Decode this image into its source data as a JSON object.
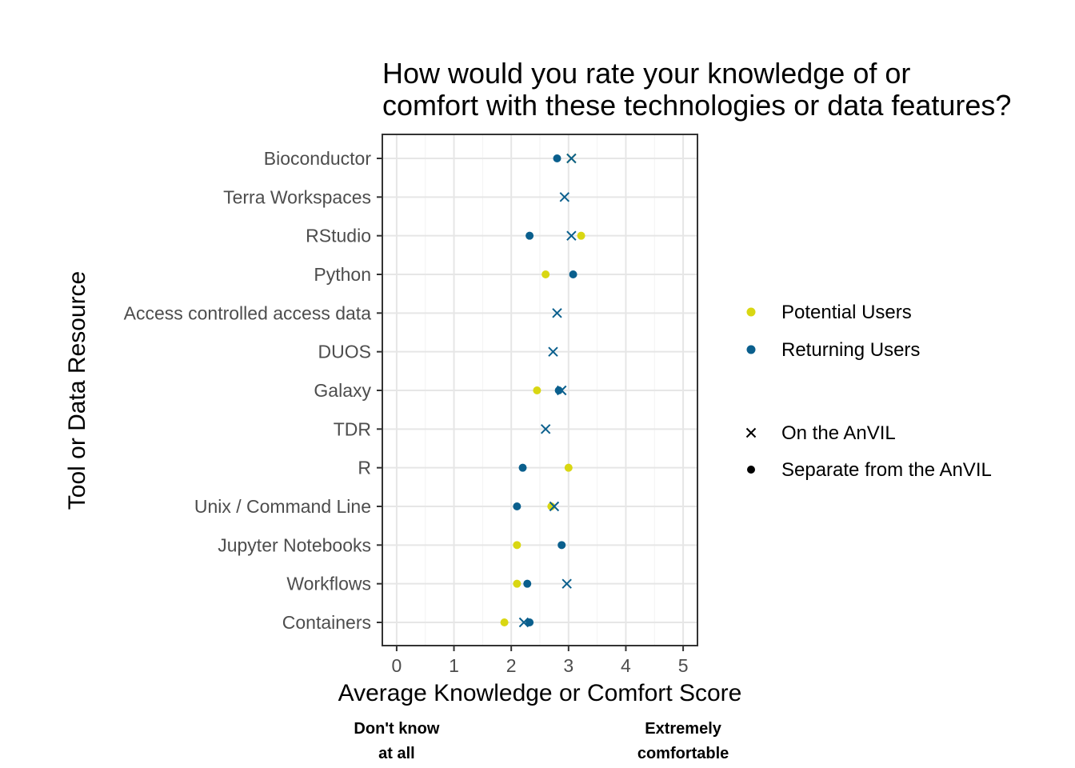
{
  "chart_data": {
    "type": "scatter",
    "title_lines": [
      "How would you rate your knowledge of or",
      "comfort with these technologies or data features?"
    ],
    "xlabel": "Average Knowledge or Comfort Score",
    "ylabel": "Tool or Data Resource",
    "xlim": [
      -0.25,
      5.25
    ],
    "x_ticks": [
      0,
      1,
      2,
      3,
      4,
      5
    ],
    "grid": true,
    "legend_position": "right",
    "x_anchor_labels": [
      {
        "x": 0,
        "lines": [
          "Don't know",
          "at all"
        ]
      },
      {
        "x": 5,
        "lines": [
          "Extremely",
          "comfortable"
        ]
      }
    ],
    "categories": [
      "Bioconductor",
      "Terra Workspaces",
      "RStudio",
      "Python",
      "Access controlled access data",
      "DUOS",
      "Galaxy",
      "TDR",
      "R",
      "Unix / Command Line",
      "Jupyter Notebooks",
      "Workflows",
      "Containers"
    ],
    "color_legend": [
      {
        "label": "Potential Users",
        "color": "#d9d712"
      },
      {
        "label": "Returning Users",
        "color": "#0a5f8d"
      }
    ],
    "shape_legend": [
      {
        "label": "On the AnVIL",
        "shape": "cross"
      },
      {
        "label": "Separate from the AnVIL",
        "shape": "circle"
      }
    ],
    "points": [
      {
        "category": "Bioconductor",
        "group": "Potential Users",
        "where": "On the AnVIL",
        "x": 3.05
      },
      {
        "category": "Bioconductor",
        "group": "Returning Users",
        "where": "Separate from the AnVIL",
        "x": 2.8
      },
      {
        "category": "Bioconductor",
        "group": "Returning Users",
        "where": "On the AnVIL",
        "x": 3.05
      },
      {
        "category": "Terra Workspaces",
        "group": "Returning Users",
        "where": "On the AnVIL",
        "x": 2.93
      },
      {
        "category": "RStudio",
        "group": "Returning Users",
        "where": "Separate from the AnVIL",
        "x": 2.32
      },
      {
        "category": "RStudio",
        "group": "Returning Users",
        "where": "On the AnVIL",
        "x": 3.05
      },
      {
        "category": "RStudio",
        "group": "Potential Users",
        "where": "Separate from the AnVIL",
        "x": 3.22
      },
      {
        "category": "Python",
        "group": "Potential Users",
        "where": "Separate from the AnVIL",
        "x": 2.6
      },
      {
        "category": "Python",
        "group": "Returning Users",
        "where": "Separate from the AnVIL",
        "x": 3.08
      },
      {
        "category": "Access controlled access data",
        "group": "Returning Users",
        "where": "On the AnVIL",
        "x": 2.8
      },
      {
        "category": "DUOS",
        "group": "Returning Users",
        "where": "On the AnVIL",
        "x": 2.73
      },
      {
        "category": "Galaxy",
        "group": "Potential Users",
        "where": "Separate from the AnVIL",
        "x": 2.45
      },
      {
        "category": "Galaxy",
        "group": "Returning Users",
        "where": "Separate from the AnVIL",
        "x": 2.83
      },
      {
        "category": "Galaxy",
        "group": "Returning Users",
        "where": "On the AnVIL",
        "x": 2.88
      },
      {
        "category": "TDR",
        "group": "Returning Users",
        "where": "On the AnVIL",
        "x": 2.6
      },
      {
        "category": "R",
        "group": "Returning Users",
        "where": "Separate from the AnVIL",
        "x": 2.2
      },
      {
        "category": "R",
        "group": "Potential Users",
        "where": "Separate from the AnVIL",
        "x": 3.0
      },
      {
        "category": "Unix / Command Line",
        "group": "Returning Users",
        "where": "Separate from the AnVIL",
        "x": 2.1
      },
      {
        "category": "Unix / Command Line",
        "group": "Returning Users",
        "where": "On the AnVIL",
        "x": 2.75
      },
      {
        "category": "Unix / Command Line",
        "group": "Potential Users",
        "where": "Separate from the AnVIL",
        "x": 2.7
      },
      {
        "category": "Jupyter Notebooks",
        "group": "Potential Users",
        "where": "Separate from the AnVIL",
        "x": 2.1
      },
      {
        "category": "Jupyter Notebooks",
        "group": "Returning Users",
        "where": "Separate from the AnVIL",
        "x": 2.88
      },
      {
        "category": "Workflows",
        "group": "Potential Users",
        "where": "Separate from the AnVIL",
        "x": 2.1
      },
      {
        "category": "Workflows",
        "group": "Returning Users",
        "where": "Separate from the AnVIL",
        "x": 2.28
      },
      {
        "category": "Workflows",
        "group": "Returning Users",
        "where": "On the AnVIL",
        "x": 2.97
      },
      {
        "category": "Containers",
        "group": "Potential Users",
        "where": "Separate from the AnVIL",
        "x": 1.88
      },
      {
        "category": "Containers",
        "group": "Returning Users",
        "where": "On the AnVIL",
        "x": 2.22
      },
      {
        "category": "Containers",
        "group": "Returning Users",
        "where": "Separate from the AnVIL",
        "x": 2.32
      }
    ]
  }
}
